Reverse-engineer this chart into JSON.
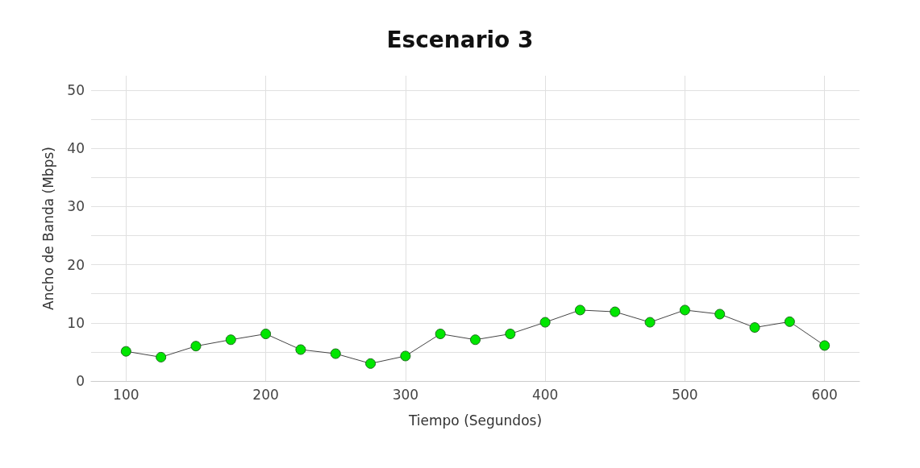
{
  "chart_data": {
    "type": "line",
    "title": "Escenario 3",
    "xlabel": "Tiempo (Segundos)",
    "ylabel": "Ancho de Banda (Mbps)",
    "x": [
      100,
      125,
      150,
      175,
      200,
      225,
      250,
      275,
      300,
      325,
      350,
      375,
      400,
      425,
      450,
      475,
      500,
      525,
      550,
      575,
      600
    ],
    "series": [
      {
        "color": "#00e600",
        "values": [
          5.1,
          4.1,
          6.0,
          7.1,
          8.1,
          5.4,
          4.7,
          3.0,
          4.3,
          8.1,
          7.1,
          8.1,
          10.1,
          12.2,
          11.9,
          10.1,
          12.2,
          11.5,
          9.2,
          10.2,
          6.1
        ]
      }
    ],
    "xlim": [
      75,
      625
    ],
    "xticks": [
      100,
      200,
      300,
      400,
      500,
      600
    ],
    "ylim": [
      0,
      52.5
    ],
    "yticks": [
      0,
      {
        "value": 5,
        "label": null
      },
      10,
      {
        "value": 15,
        "label": null
      },
      20,
      {
        "value": 25,
        "label": null
      },
      30,
      {
        "value": 35,
        "label": null
      },
      40,
      {
        "value": 45,
        "label": null
      },
      50
    ],
    "grid": true,
    "marker": "circle",
    "line_style": "solid"
  }
}
